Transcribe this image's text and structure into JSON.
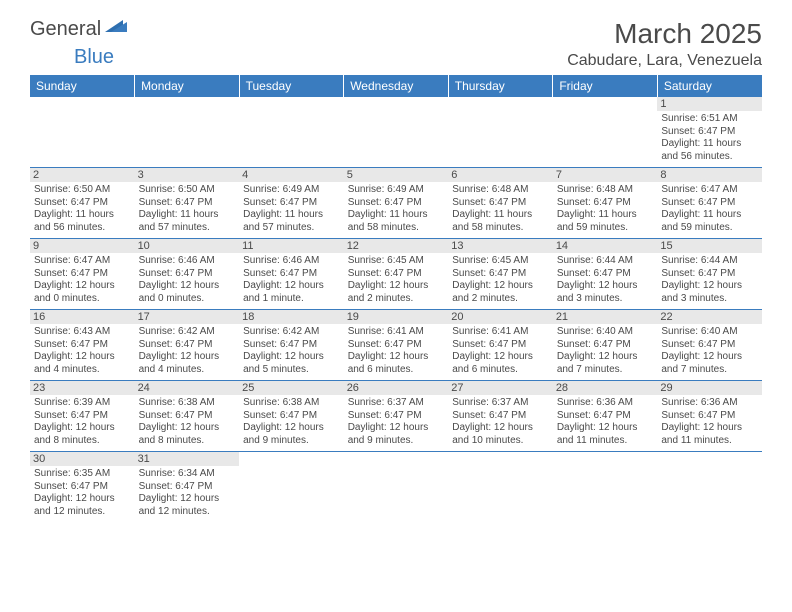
{
  "logo": {
    "general": "General",
    "blue": "Blue"
  },
  "title": "March 2025",
  "location": "Cabudare, Lara, Venezuela",
  "colors": {
    "header_bg": "#3a7cbf",
    "header_text": "#ffffff",
    "daynum_bg": "#e8e8e8",
    "text": "#4a4a4a",
    "border": "#3a7cbf"
  },
  "weekdays": [
    "Sunday",
    "Monday",
    "Tuesday",
    "Wednesday",
    "Thursday",
    "Friday",
    "Saturday"
  ],
  "weeks": [
    [
      null,
      null,
      null,
      null,
      null,
      null,
      {
        "n": "1",
        "sunrise": "Sunrise: 6:51 AM",
        "sunset": "Sunset: 6:47 PM",
        "daylight": "Daylight: 11 hours and 56 minutes."
      }
    ],
    [
      {
        "n": "2",
        "sunrise": "Sunrise: 6:50 AM",
        "sunset": "Sunset: 6:47 PM",
        "daylight": "Daylight: 11 hours and 56 minutes."
      },
      {
        "n": "3",
        "sunrise": "Sunrise: 6:50 AM",
        "sunset": "Sunset: 6:47 PM",
        "daylight": "Daylight: 11 hours and 57 minutes."
      },
      {
        "n": "4",
        "sunrise": "Sunrise: 6:49 AM",
        "sunset": "Sunset: 6:47 PM",
        "daylight": "Daylight: 11 hours and 57 minutes."
      },
      {
        "n": "5",
        "sunrise": "Sunrise: 6:49 AM",
        "sunset": "Sunset: 6:47 PM",
        "daylight": "Daylight: 11 hours and 58 minutes."
      },
      {
        "n": "6",
        "sunrise": "Sunrise: 6:48 AM",
        "sunset": "Sunset: 6:47 PM",
        "daylight": "Daylight: 11 hours and 58 minutes."
      },
      {
        "n": "7",
        "sunrise": "Sunrise: 6:48 AM",
        "sunset": "Sunset: 6:47 PM",
        "daylight": "Daylight: 11 hours and 59 minutes."
      },
      {
        "n": "8",
        "sunrise": "Sunrise: 6:47 AM",
        "sunset": "Sunset: 6:47 PM",
        "daylight": "Daylight: 11 hours and 59 minutes."
      }
    ],
    [
      {
        "n": "9",
        "sunrise": "Sunrise: 6:47 AM",
        "sunset": "Sunset: 6:47 PM",
        "daylight": "Daylight: 12 hours and 0 minutes."
      },
      {
        "n": "10",
        "sunrise": "Sunrise: 6:46 AM",
        "sunset": "Sunset: 6:47 PM",
        "daylight": "Daylight: 12 hours and 0 minutes."
      },
      {
        "n": "11",
        "sunrise": "Sunrise: 6:46 AM",
        "sunset": "Sunset: 6:47 PM",
        "daylight": "Daylight: 12 hours and 1 minute."
      },
      {
        "n": "12",
        "sunrise": "Sunrise: 6:45 AM",
        "sunset": "Sunset: 6:47 PM",
        "daylight": "Daylight: 12 hours and 2 minutes."
      },
      {
        "n": "13",
        "sunrise": "Sunrise: 6:45 AM",
        "sunset": "Sunset: 6:47 PM",
        "daylight": "Daylight: 12 hours and 2 minutes."
      },
      {
        "n": "14",
        "sunrise": "Sunrise: 6:44 AM",
        "sunset": "Sunset: 6:47 PM",
        "daylight": "Daylight: 12 hours and 3 minutes."
      },
      {
        "n": "15",
        "sunrise": "Sunrise: 6:44 AM",
        "sunset": "Sunset: 6:47 PM",
        "daylight": "Daylight: 12 hours and 3 minutes."
      }
    ],
    [
      {
        "n": "16",
        "sunrise": "Sunrise: 6:43 AM",
        "sunset": "Sunset: 6:47 PM",
        "daylight": "Daylight: 12 hours and 4 minutes."
      },
      {
        "n": "17",
        "sunrise": "Sunrise: 6:42 AM",
        "sunset": "Sunset: 6:47 PM",
        "daylight": "Daylight: 12 hours and 4 minutes."
      },
      {
        "n": "18",
        "sunrise": "Sunrise: 6:42 AM",
        "sunset": "Sunset: 6:47 PM",
        "daylight": "Daylight: 12 hours and 5 minutes."
      },
      {
        "n": "19",
        "sunrise": "Sunrise: 6:41 AM",
        "sunset": "Sunset: 6:47 PM",
        "daylight": "Daylight: 12 hours and 6 minutes."
      },
      {
        "n": "20",
        "sunrise": "Sunrise: 6:41 AM",
        "sunset": "Sunset: 6:47 PM",
        "daylight": "Daylight: 12 hours and 6 minutes."
      },
      {
        "n": "21",
        "sunrise": "Sunrise: 6:40 AM",
        "sunset": "Sunset: 6:47 PM",
        "daylight": "Daylight: 12 hours and 7 minutes."
      },
      {
        "n": "22",
        "sunrise": "Sunrise: 6:40 AM",
        "sunset": "Sunset: 6:47 PM",
        "daylight": "Daylight: 12 hours and 7 minutes."
      }
    ],
    [
      {
        "n": "23",
        "sunrise": "Sunrise: 6:39 AM",
        "sunset": "Sunset: 6:47 PM",
        "daylight": "Daylight: 12 hours and 8 minutes."
      },
      {
        "n": "24",
        "sunrise": "Sunrise: 6:38 AM",
        "sunset": "Sunset: 6:47 PM",
        "daylight": "Daylight: 12 hours and 8 minutes."
      },
      {
        "n": "25",
        "sunrise": "Sunrise: 6:38 AM",
        "sunset": "Sunset: 6:47 PM",
        "daylight": "Daylight: 12 hours and 9 minutes."
      },
      {
        "n": "26",
        "sunrise": "Sunrise: 6:37 AM",
        "sunset": "Sunset: 6:47 PM",
        "daylight": "Daylight: 12 hours and 9 minutes."
      },
      {
        "n": "27",
        "sunrise": "Sunrise: 6:37 AM",
        "sunset": "Sunset: 6:47 PM",
        "daylight": "Daylight: 12 hours and 10 minutes."
      },
      {
        "n": "28",
        "sunrise": "Sunrise: 6:36 AM",
        "sunset": "Sunset: 6:47 PM",
        "daylight": "Daylight: 12 hours and 11 minutes."
      },
      {
        "n": "29",
        "sunrise": "Sunrise: 6:36 AM",
        "sunset": "Sunset: 6:47 PM",
        "daylight": "Daylight: 12 hours and 11 minutes."
      }
    ],
    [
      {
        "n": "30",
        "sunrise": "Sunrise: 6:35 AM",
        "sunset": "Sunset: 6:47 PM",
        "daylight": "Daylight: 12 hours and 12 minutes."
      },
      {
        "n": "31",
        "sunrise": "Sunrise: 6:34 AM",
        "sunset": "Sunset: 6:47 PM",
        "daylight": "Daylight: 12 hours and 12 minutes."
      },
      null,
      null,
      null,
      null,
      null
    ]
  ]
}
